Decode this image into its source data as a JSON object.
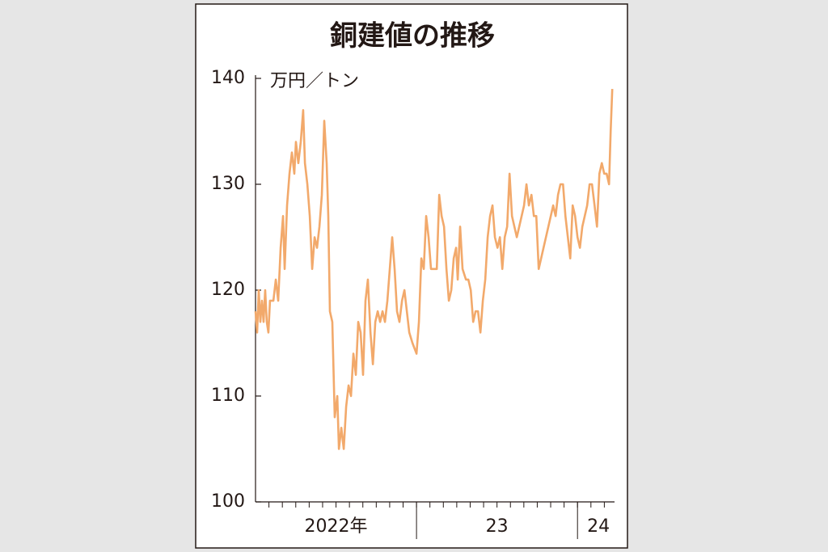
{
  "chart_data": {
    "type": "line",
    "title": "銅建値の推移",
    "y_unit": "万円／トン",
    "x": [
      2022,
      2022.01,
      2022.02,
      2022.03,
      2022.04,
      2022.05,
      2022.06,
      2022.07,
      2022.08,
      2022.09,
      2022.111,
      2022.126,
      2022.141,
      2022.156,
      2022.171,
      2022.181,
      2022.196,
      2022.211,
      2022.226,
      2022.241,
      2022.251,
      2022.266,
      2022.281,
      2022.296,
      2022.307,
      2022.322,
      2022.337,
      2022.352,
      2022.367,
      2022.382,
      2022.397,
      2022.412,
      2022.427,
      2022.442,
      2022.452,
      2022.462,
      2022.477,
      2022.492,
      2022.508,
      2022.518,
      2022.533,
      2022.548,
      2022.563,
      2022.578,
      2022.593,
      2022.608,
      2022.623,
      2022.638,
      2022.653,
      2022.668,
      2022.683,
      2022.698,
      2022.714,
      2022.729,
      2022.744,
      2022.759,
      2022.774,
      2022.789,
      2022.804,
      2022.819,
      2022.834,
      2022.849,
      2022.864,
      2022.879,
      2022.894,
      2022.91,
      2022.925,
      2022.94,
      2022.955,
      2022.975,
      2023,
      2023.015,
      2023.03,
      2023.045,
      2023.06,
      2023.075,
      2023.09,
      2023.106,
      2023.126,
      2023.141,
      2023.156,
      2023.171,
      2023.186,
      2023.201,
      2023.216,
      2023.231,
      2023.246,
      2023.256,
      2023.271,
      2023.286,
      2023.307,
      2023.322,
      2023.337,
      2023.352,
      2023.367,
      2023.382,
      2023.397,
      2023.412,
      2023.427,
      2023.442,
      2023.457,
      2023.472,
      2023.487,
      2023.503,
      2023.518,
      2023.533,
      2023.548,
      2023.563,
      2023.578,
      2023.593,
      2023.608,
      2023.623,
      2023.638,
      2023.653,
      2023.668,
      2023.683,
      2023.698,
      2023.714,
      2023.729,
      2023.744,
      2023.759,
      2023.774,
      2023.789,
      2023.804,
      2023.819,
      2023.834,
      2023.849,
      2023.864,
      2023.879,
      2023.894,
      2023.91,
      2023.925,
      2023.94,
      2023.955,
      2023.97,
      2023.985,
      2024,
      2024.015,
      2024.03,
      2024.045,
      2024.06,
      2024.075,
      2024.09,
      2024.106,
      2024.121,
      2024.136,
      2024.151,
      2024.166,
      2024.181,
      2024.196,
      2024.206,
      2024.216
    ],
    "series": [
      {
        "color": "#f2a96b",
        "values": [
          118,
          116,
          120,
          117,
          119,
          117,
          120,
          117,
          116,
          119,
          119,
          121,
          119,
          124,
          127,
          122,
          128,
          131,
          133,
          131,
          134,
          132,
          134,
          137,
          132,
          130,
          127,
          122,
          125,
          124,
          126,
          129,
          136,
          132,
          127,
          118,
          117,
          108,
          110,
          105,
          107,
          105,
          109,
          111,
          110,
          114,
          112,
          117,
          116,
          112,
          119,
          121,
          116,
          113,
          117,
          118,
          117,
          118,
          117,
          119,
          122,
          125,
          122,
          118,
          117,
          119,
          120,
          118,
          116,
          115,
          114,
          117,
          123,
          122,
          127,
          125,
          122,
          122,
          122,
          129,
          127,
          126,
          122,
          119,
          120,
          123,
          124,
          121,
          126,
          122,
          121,
          121,
          120,
          117,
          118,
          118,
          116,
          119,
          121,
          125,
          127,
          128,
          125,
          124,
          125,
          122,
          125,
          126,
          131,
          127,
          126,
          125,
          126,
          127,
          128,
          130,
          128,
          129,
          127,
          127,
          122,
          123,
          124,
          125,
          126,
          127,
          128,
          127,
          129,
          130,
          130,
          127,
          125,
          123,
          128,
          127,
          125,
          124,
          126,
          127,
          128,
          130,
          130,
          128,
          126,
          131,
          132,
          131,
          131,
          130,
          135,
          139
        ]
      }
    ],
    "xlim": [
      2022,
      2024.23
    ],
    "xticks": [
      {
        "value": 2022.5,
        "label": "2022年"
      },
      {
        "value": 2023.5,
        "label": "23"
      },
      {
        "value": 2024.13,
        "label": "24"
      }
    ],
    "xdividers": [
      2023,
      2024
    ],
    "ylim": [
      100,
      140
    ],
    "yticks": [
      100,
      110,
      120,
      130,
      140
    ]
  }
}
